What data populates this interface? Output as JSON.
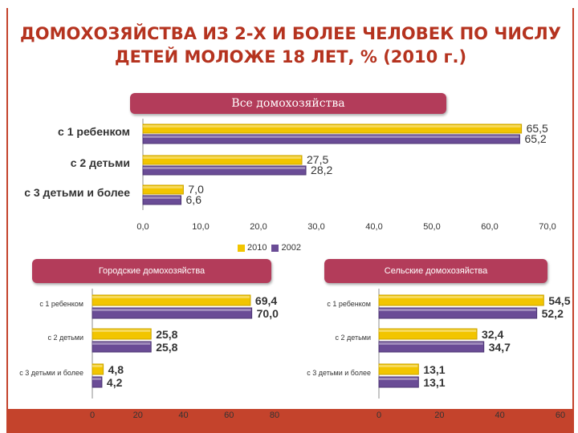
{
  "title": {
    "line1": "ДОМОХОЗЯЙСТВА ИЗ 2-Х И БОЛЕЕ ЧЕЛОВЕК ПО ЧИСЛУ",
    "line2": "ДЕТЕЙ МОЛОЖЕ 18 ЛЕТ, % (2010 г.)"
  },
  "colors": {
    "y2010": "#f2c500",
    "y2002": "#6a4c96",
    "frame": "#c4432c",
    "header": "#b33c5a",
    "title": "#b5331f"
  },
  "legend": [
    "2010",
    "2002"
  ],
  "chart_data": [
    {
      "type": "bar",
      "title": "Все домохозяйства",
      "orientation": "horizontal",
      "categories": [
        "с 1 ребенком",
        "с 2 детьми",
        "с 3  детьми и более"
      ],
      "series": [
        {
          "name": "2010",
          "values": [
            65.5,
            27.5,
            7.0
          ],
          "labels": [
            "65,5",
            "27,5",
            "7,0"
          ]
        },
        {
          "name": "2002",
          "values": [
            65.2,
            28.2,
            6.6
          ],
          "labels": [
            "65,2",
            "28,2",
            "6,6"
          ]
        }
      ],
      "xlim": [
        0,
        70
      ],
      "ticks": [
        "0,0",
        "10,0",
        "20,0",
        "30,0",
        "40,0",
        "50,0",
        "60,0",
        "70,0"
      ],
      "legend": "bottom"
    },
    {
      "type": "bar",
      "title": "Городские домохозяйства",
      "orientation": "horizontal",
      "categories": [
        "с 1 ребенком",
        "с 2 детьми",
        "с 3  детьми и более"
      ],
      "series": [
        {
          "name": "2010",
          "values": [
            69.4,
            25.8,
            4.8
          ],
          "labels": [
            "69,4",
            "25,8",
            "4,8"
          ]
        },
        {
          "name": "2002",
          "values": [
            70.0,
            25.8,
            4.2
          ],
          "labels": [
            "70,0",
            "25,8",
            "4,2"
          ]
        }
      ],
      "xlim": [
        0,
        80
      ],
      "ticks": [
        "0",
        "20",
        "40",
        "60",
        "80"
      ]
    },
    {
      "type": "bar",
      "title": "Сельские домохозяйства",
      "orientation": "horizontal",
      "categories": [
        "с 1 ребенком",
        "с 2 детьми",
        "с 3  детьми и более"
      ],
      "series": [
        {
          "name": "2010",
          "values": [
            54.5,
            32.4,
            13.1
          ],
          "labels": [
            "54,5",
            "32,4",
            "13,1"
          ]
        },
        {
          "name": "2002",
          "values": [
            52.2,
            34.7,
            13.1
          ],
          "labels": [
            "52,2",
            "34,7",
            "13,1"
          ]
        }
      ],
      "xlim": [
        0,
        60
      ],
      "ticks": [
        "0",
        "20",
        "40",
        "60"
      ]
    }
  ]
}
